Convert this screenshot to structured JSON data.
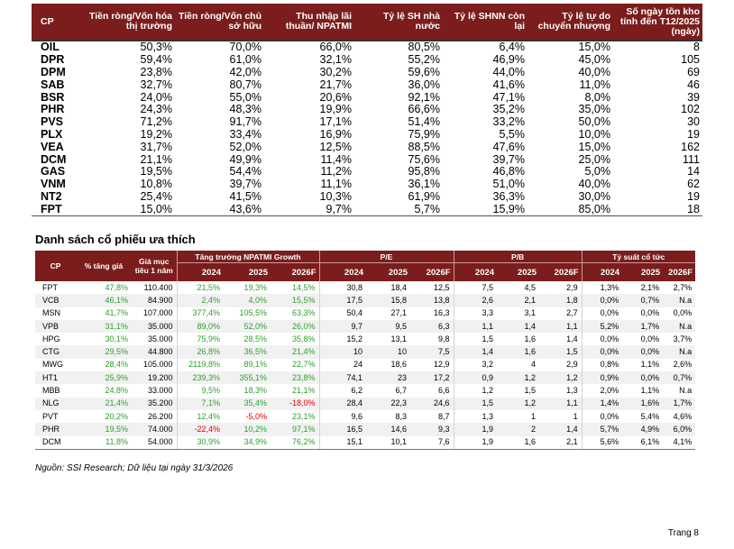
{
  "table1": {
    "headers": [
      "CP",
      "Tiền ròng/Vốn hóa thị trường",
      "Tiền ròng/Vốn chủ sở hữu",
      "Thu nhập lãi thuần/ NPATMI",
      "Tỷ lệ SH nhà nước",
      "Tỷ lệ SHNN còn lại",
      "Tỷ lệ tự do chuyển nhượng",
      "Số ngày tồn kho tính đến T12/2025 (ngày)"
    ],
    "rows": [
      [
        "OIL",
        "50,3%",
        "70,0%",
        "66,0%",
        "80,5%",
        "6,4%",
        "15,0%",
        "8"
      ],
      [
        "DPR",
        "59,4%",
        "61,0%",
        "32,1%",
        "55,2%",
        "46,9%",
        "45,0%",
        "105"
      ],
      [
        "DPM",
        "23,8%",
        "42,0%",
        "30,2%",
        "59,6%",
        "44,0%",
        "40,0%",
        "69"
      ],
      [
        "SAB",
        "32,7%",
        "80,7%",
        "21,7%",
        "36,0%",
        "41,6%",
        "11,0%",
        "46"
      ],
      [
        "BSR",
        "24,0%",
        "55,0%",
        "20,6%",
        "92,1%",
        "47,1%",
        "8,0%",
        "39"
      ],
      [
        "PHR",
        "24,3%",
        "48,3%",
        "19,9%",
        "66,6%",
        "35,2%",
        "35,0%",
        "102"
      ],
      [
        "PVS",
        "71,2%",
        "91,7%",
        "17,1%",
        "51,4%",
        "33,2%",
        "50,0%",
        "30"
      ],
      [
        "PLX",
        "19,2%",
        "33,4%",
        "16,9%",
        "75,9%",
        "5,5%",
        "10,0%",
        "19"
      ],
      [
        "VEA",
        "31,7%",
        "52,0%",
        "12,5%",
        "88,5%",
        "47,6%",
        "15,0%",
        "162"
      ],
      [
        "DCM",
        "21,1%",
        "49,9%",
        "11,4%",
        "75,6%",
        "39,7%",
        "25,0%",
        "111"
      ],
      [
        "GAS",
        "19,5%",
        "54,4%",
        "11,2%",
        "95,8%",
        "46,8%",
        "5,0%",
        "14"
      ],
      [
        "VNM",
        "10,8%",
        "39,7%",
        "11,1%",
        "36,1%",
        "51,0%",
        "40,0%",
        "62"
      ],
      [
        "NT2",
        "25,4%",
        "41,5%",
        "10,3%",
        "61,9%",
        "36,3%",
        "30,0%",
        "19"
      ],
      [
        "FPT",
        "15,0%",
        "43,6%",
        "9,7%",
        "5,7%",
        "15,9%",
        "85,0%",
        "18"
      ]
    ]
  },
  "section_title": "Danh sách cổ phiếu ưa thích",
  "table2": {
    "header": {
      "cp": "CP",
      "upside": "% tăng giá",
      "target": "Giá mục tiêu 1 năm",
      "group_growth": "Tăng trưởng NPATMI Growth",
      "group_pe": "P/E",
      "group_pb": "P/B",
      "group_div": "Tỷ suất cổ tức",
      "years": [
        "2024",
        "2025",
        "2026F"
      ]
    },
    "rows": [
      {
        "cp": "FPT",
        "upside": "47,8%",
        "target": "110.400",
        "growth": [
          "21,5%",
          "19,3%",
          "14,5%"
        ],
        "pe": [
          "30,8",
          "18,4",
          "12,5"
        ],
        "pb": [
          "7,5",
          "4,5",
          "2,9"
        ],
        "div": [
          "1,3%",
          "2,1%",
          "2,7%"
        ]
      },
      {
        "cp": "VCB",
        "upside": "46,1%",
        "target": "84.900",
        "growth": [
          "2,4%",
          "4,0%",
          "15,5%"
        ],
        "pe": [
          "17,5",
          "15,8",
          "13,8"
        ],
        "pb": [
          "2,6",
          "2,1",
          "1,8"
        ],
        "div": [
          "0,0%",
          "0,7%",
          "N.a"
        ]
      },
      {
        "cp": "MSN",
        "upside": "41,7%",
        "target": "107.000",
        "growth": [
          "377,4%",
          "105,5%",
          "63,3%"
        ],
        "pe": [
          "50,4",
          "27,1",
          "16,3"
        ],
        "pb": [
          "3,3",
          "3,1",
          "2,7"
        ],
        "div": [
          "0,0%",
          "0,0%",
          "0,0%"
        ]
      },
      {
        "cp": "VPB",
        "upside": "31,1%",
        "target": "35.000",
        "growth": [
          "89,0%",
          "52,0%",
          "26,0%"
        ],
        "pe": [
          "9,7",
          "9,5",
          "6,3"
        ],
        "pb": [
          "1,1",
          "1,4",
          "1,1"
        ],
        "div": [
          "5,2%",
          "1,7%",
          "N.a"
        ]
      },
      {
        "cp": "HPG",
        "upside": "30,1%",
        "target": "35.000",
        "growth": [
          "75,9%",
          "28,5%",
          "35,8%"
        ],
        "pe": [
          "15,2",
          "13,1",
          "9,8"
        ],
        "pb": [
          "1,5",
          "1,6",
          "1,4"
        ],
        "div": [
          "0,0%",
          "0,0%",
          "3,7%"
        ]
      },
      {
        "cp": "CTG",
        "upside": "29,5%",
        "target": "44.800",
        "growth": [
          "26,8%",
          "36,5%",
          "21,4%"
        ],
        "pe": [
          "10",
          "10",
          "7,5"
        ],
        "pb": [
          "1,4",
          "1,6",
          "1,5"
        ],
        "div": [
          "0,0%",
          "0,0%",
          "N.a"
        ]
      },
      {
        "cp": "MWG",
        "upside": "28,4%",
        "target": "105.000",
        "growth": [
          "2119,8%",
          "89,1%",
          "22,7%"
        ],
        "pe": [
          "24",
          "18,6",
          "12,9"
        ],
        "pb": [
          "3,2",
          "4",
          "2,9"
        ],
        "div": [
          "0,8%",
          "1,1%",
          "2,6%"
        ]
      },
      {
        "cp": "HT1",
        "upside": "25,9%",
        "target": "19.200",
        "growth": [
          "239,3%",
          "355,1%",
          "23,8%"
        ],
        "pe": [
          "74,1",
          "23",
          "17,2"
        ],
        "pb": [
          "0,9",
          "1,2",
          "1,2"
        ],
        "div": [
          "0,9%",
          "0,0%",
          "0,7%"
        ]
      },
      {
        "cp": "MBB",
        "upside": "24,8%",
        "target": "33.000",
        "growth": [
          "9,5%",
          "18,3%",
          "21,1%"
        ],
        "pe": [
          "6,2",
          "6,7",
          "6,6"
        ],
        "pb": [
          "1,2",
          "1,5",
          "1,3"
        ],
        "div": [
          "2,0%",
          "1,1%",
          "N.a"
        ]
      },
      {
        "cp": "NLG",
        "upside": "21,4%",
        "target": "35.200",
        "growth": [
          "7,1%",
          "35,4%",
          "-18,0%"
        ],
        "pe": [
          "28,4",
          "22,3",
          "24,6"
        ],
        "pb": [
          "1,5",
          "1,2",
          "1,1"
        ],
        "div": [
          "1,4%",
          "1,6%",
          "1,7%"
        ]
      },
      {
        "cp": "PVT",
        "upside": "20,2%",
        "target": "26.200",
        "growth": [
          "12,4%",
          "-5,0%",
          "23,1%"
        ],
        "pe": [
          "9,6",
          "8,3",
          "8,7"
        ],
        "pb": [
          "1,3",
          "1",
          "1"
        ],
        "div": [
          "0,0%",
          "5,4%",
          "4,6%"
        ]
      },
      {
        "cp": "PHR",
        "upside": "19,5%",
        "target": "74.000",
        "growth": [
          "-22,4%",
          "10,2%",
          "97,1%"
        ],
        "pe": [
          "16,5",
          "14,6",
          "9,3"
        ],
        "pb": [
          "1,9",
          "2",
          "1,4"
        ],
        "div": [
          "5,7%",
          "4,9%",
          "6,0%"
        ]
      },
      {
        "cp": "DCM",
        "upside": "11,8%",
        "target": "54.000",
        "growth": [
          "30,9%",
          "34,9%",
          "76,2%"
        ],
        "pe": [
          "15,1",
          "10,1",
          "7,6"
        ],
        "pb": [
          "1,9",
          "1,6",
          "2,1"
        ],
        "div": [
          "5,6%",
          "6,1%",
          "4,1%"
        ]
      }
    ]
  },
  "source": "Nguồn: SSI Research; Dữ liệu tại ngày 31/3/2026",
  "page": "Trang 8",
  "colors": {
    "header_bg": "#7b1d1d",
    "positive": "#2e9e2e",
    "negative": "#e00000"
  }
}
